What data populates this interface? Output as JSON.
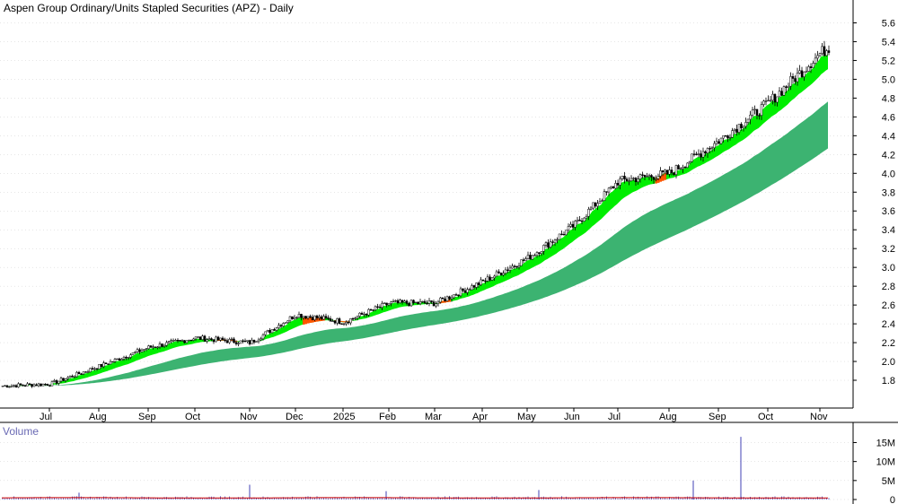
{
  "chart_data": {
    "type": "candlestick",
    "title": "Aspen Group Ordinary/Units Stapled Securities (APZ) - Daily",
    "price_axis": {
      "ticks": [
        "1.8",
        "2.0",
        "2.2",
        "2.4",
        "2.6",
        "2.8",
        "3.0",
        "3.2",
        "3.4",
        "3.6",
        "3.8",
        "4.0",
        "4.2",
        "4.4",
        "4.6",
        "4.8",
        "5.0",
        "5.2",
        "5.4",
        "5.6"
      ],
      "range": [
        1.6,
        5.7
      ],
      "position": "right"
    },
    "months": [
      "Jul",
      "Aug",
      "Sep",
      "Oct",
      "Nov",
      "Dec",
      "2025",
      "Feb",
      "Mar",
      "Apr",
      "May",
      "Jun",
      "Jul",
      "Aug",
      "Sep",
      "Oct",
      "Nov"
    ],
    "volume_panel": {
      "title": "Volume",
      "ticks": [
        "0",
        "5M",
        "10M",
        "15M"
      ],
      "range_millions": [
        0,
        17
      ]
    },
    "series": [
      {
        "kind": "price"
      },
      {
        "kind": "short-term-ribbon"
      },
      {
        "kind": "long-term-ribbon"
      },
      {
        "kind": "volume"
      }
    ],
    "colors": {
      "candle": "#000000",
      "ribbon_short": "#00ee00",
      "ribbon_short_down": "#ff5500",
      "ribbon_long": "#3cb371",
      "volume_bar": "#6060c0",
      "volume_avg": "#cc0000",
      "grid": "#cccccc"
    },
    "key_prices": [
      {
        "x": "Jul",
        "close": 1.76
      },
      {
        "x": "Aug",
        "close": 1.95
      },
      {
        "x": "Sep",
        "close": 2.15
      },
      {
        "x": "Oct",
        "close": 2.25
      },
      {
        "x": "Nov",
        "close": 2.2
      },
      {
        "x": "Dec",
        "close": 2.5
      },
      {
        "x": "2025",
        "close": 2.42
      },
      {
        "x": "Feb",
        "close": 2.62
      },
      {
        "x": "Mar",
        "close": 2.62
      },
      {
        "x": "Apr",
        "close": 2.85
      },
      {
        "x": "May",
        "close": 3.1
      },
      {
        "x": "Jun",
        "close": 3.45
      },
      {
        "x": "Jul",
        "close": 3.92
      },
      {
        "x": "Aug",
        "close": 4.0
      },
      {
        "x": "Sep",
        "close": 4.35
      },
      {
        "x": "Oct",
        "close": 4.75
      },
      {
        "x": "Nov",
        "close": 5.28
      }
    ],
    "volume_spikes_millions": [
      {
        "x": "Jul",
        "value": 1.8
      },
      {
        "x": "Nov",
        "value": 3.9
      },
      {
        "x": "Feb",
        "value": 2.2
      },
      {
        "x": "May",
        "value": 2.5
      },
      {
        "x": "Aug",
        "value": 5.0
      },
      {
        "x": "Sep",
        "value": 16.5
      }
    ]
  }
}
